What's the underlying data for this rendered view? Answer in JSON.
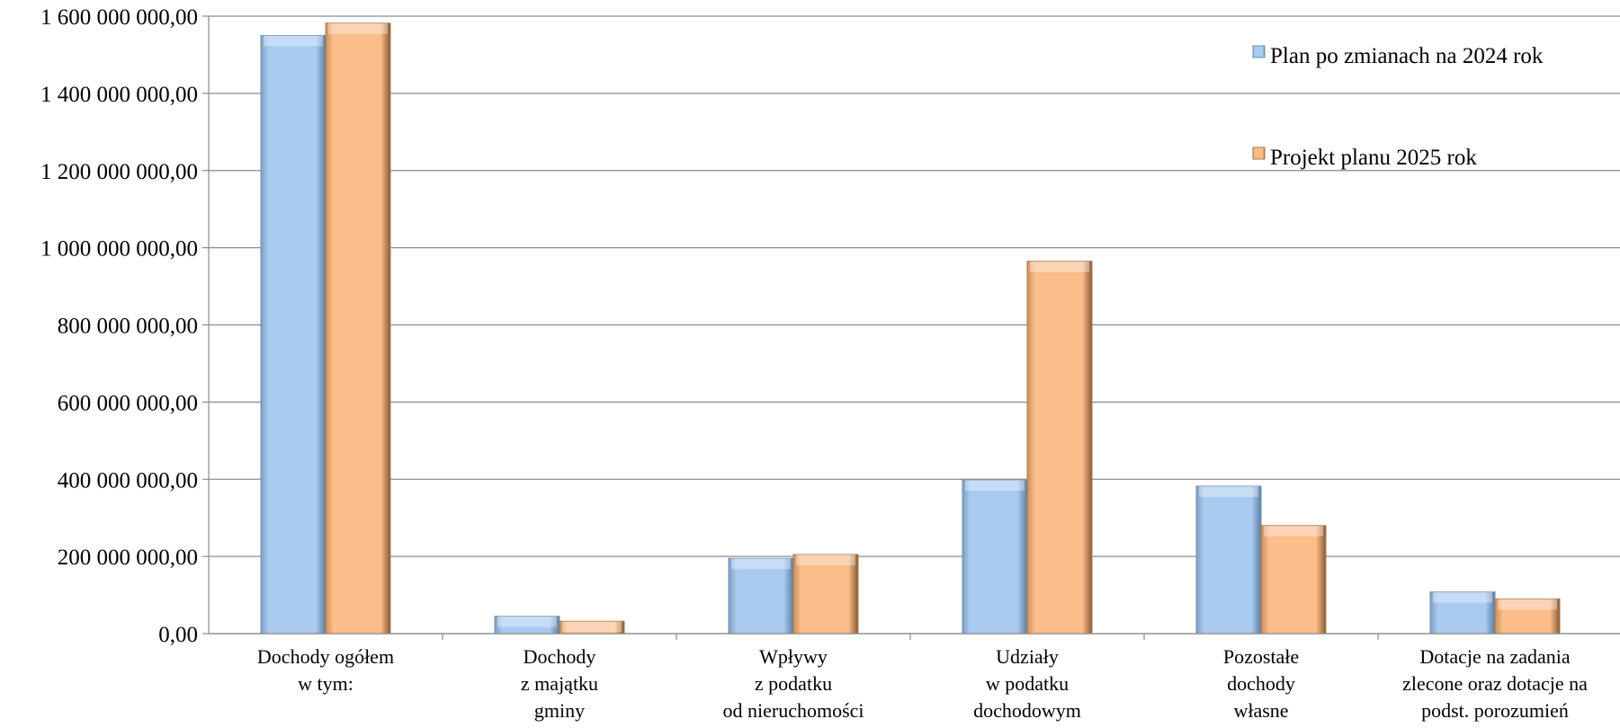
{
  "chart_data": {
    "type": "bar",
    "categories": [
      [
        "Dochody ogółem",
        "w tym:"
      ],
      [
        "Dochody",
        "z majątku",
        "gminy"
      ],
      [
        "Wpływy",
        "z podatku",
        "od nieruchomości"
      ],
      [
        "Udziały",
        "w podatku",
        "dochodowym"
      ],
      [
        "Pozostałe",
        "dochody",
        "własne"
      ],
      [
        "Dotacje na zadania",
        "zlecone oraz dotacje na",
        "podst. porozumień"
      ]
    ],
    "series": [
      {
        "name": "Plan po zmianach na 2024 rok",
        "color": "#a9cbf0",
        "values": [
          1550000000,
          45000000,
          195000000,
          398000000,
          382000000,
          108000000
        ]
      },
      {
        "name": "Projekt planu 2025 rok",
        "color": "#fbbd8a",
        "values": [
          1582000000,
          32000000,
          205000000,
          965000000,
          280000000,
          90000000
        ]
      }
    ],
    "ylim": [
      0,
      1600000000
    ],
    "yticks": [
      0,
      200000000,
      400000000,
      600000000,
      800000000,
      1000000000,
      1200000000,
      1400000000,
      1600000000
    ],
    "ytick_labels": [
      "0,00",
      "200 000 000,00",
      "400 000 000,00",
      "600 000 000,00",
      "800 000 000,00",
      "1 000 000 000,00",
      "1 200 000 000,00",
      "1 400 000 000,00",
      "1 600 000 000,00"
    ],
    "grid": true,
    "legend_position": "top-right"
  }
}
